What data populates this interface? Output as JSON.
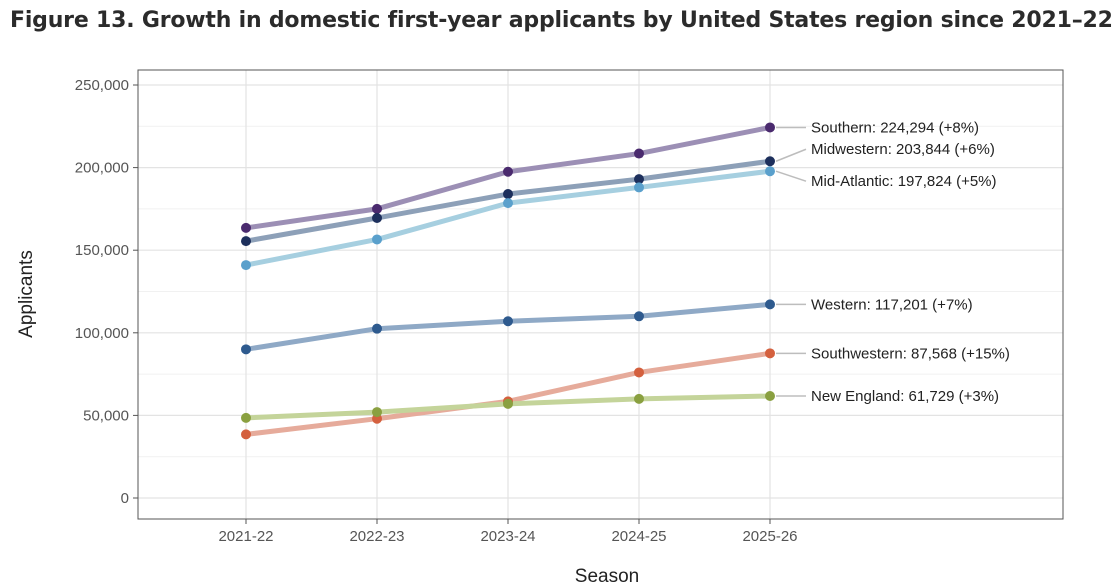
{
  "title": "Figure 13. Growth in domestic first-year applicants by United States region since 2021–22",
  "chart_data": {
    "type": "line",
    "xlabel": "Season",
    "ylabel": "Applicants",
    "categories": [
      "2021-22",
      "2022-23",
      "2023-24",
      "2024-25",
      "2025-26"
    ],
    "ylim": [
      0,
      250000
    ],
    "yticks": [
      0,
      50000,
      100000,
      150000,
      200000,
      250000
    ],
    "ytick_labels": [
      "0",
      "50,000",
      "100,000",
      "150,000",
      "200,000",
      "250,000"
    ],
    "grid": true,
    "series": [
      {
        "name": "Southern",
        "values": [
          163500,
          175000,
          197500,
          208500,
          224294
        ],
        "label": "Southern: 224,294 (+8%)",
        "line_color": "#9c8fb5",
        "point_color": "#4a2a6e"
      },
      {
        "name": "Midwestern",
        "values": [
          155500,
          169500,
          184000,
          193000,
          203844
        ],
        "label": "Midwestern: 203,844 (+6%)",
        "line_color": "#8da0b8",
        "point_color": "#1d2f5c"
      },
      {
        "name": "Mid-Atlantic",
        "values": [
          141000,
          156500,
          178500,
          188000,
          197824
        ],
        "label": "Mid-Atlantic: 197,824 (+5%)",
        "line_color": "#a6cfe0",
        "point_color": "#5aa0cc"
      },
      {
        "name": "Western",
        "values": [
          90000,
          102500,
          107000,
          110000,
          117201
        ],
        "label": "Western: 117,201 (+7%)",
        "line_color": "#8fa9c6",
        "point_color": "#2e5a8e"
      },
      {
        "name": "Southwestern",
        "values": [
          38500,
          48000,
          58500,
          76000,
          87568
        ],
        "label": "Southwestern: 87,568 (+15%)",
        "line_color": "#e6ab9b",
        "point_color": "#d4603e"
      },
      {
        "name": "New England",
        "values": [
          48500,
          52000,
          57000,
          60000,
          61729
        ],
        "label": "New England: 61,729 (+3%)",
        "line_color": "#c4d49a",
        "point_color": "#8aa040"
      }
    ]
  }
}
